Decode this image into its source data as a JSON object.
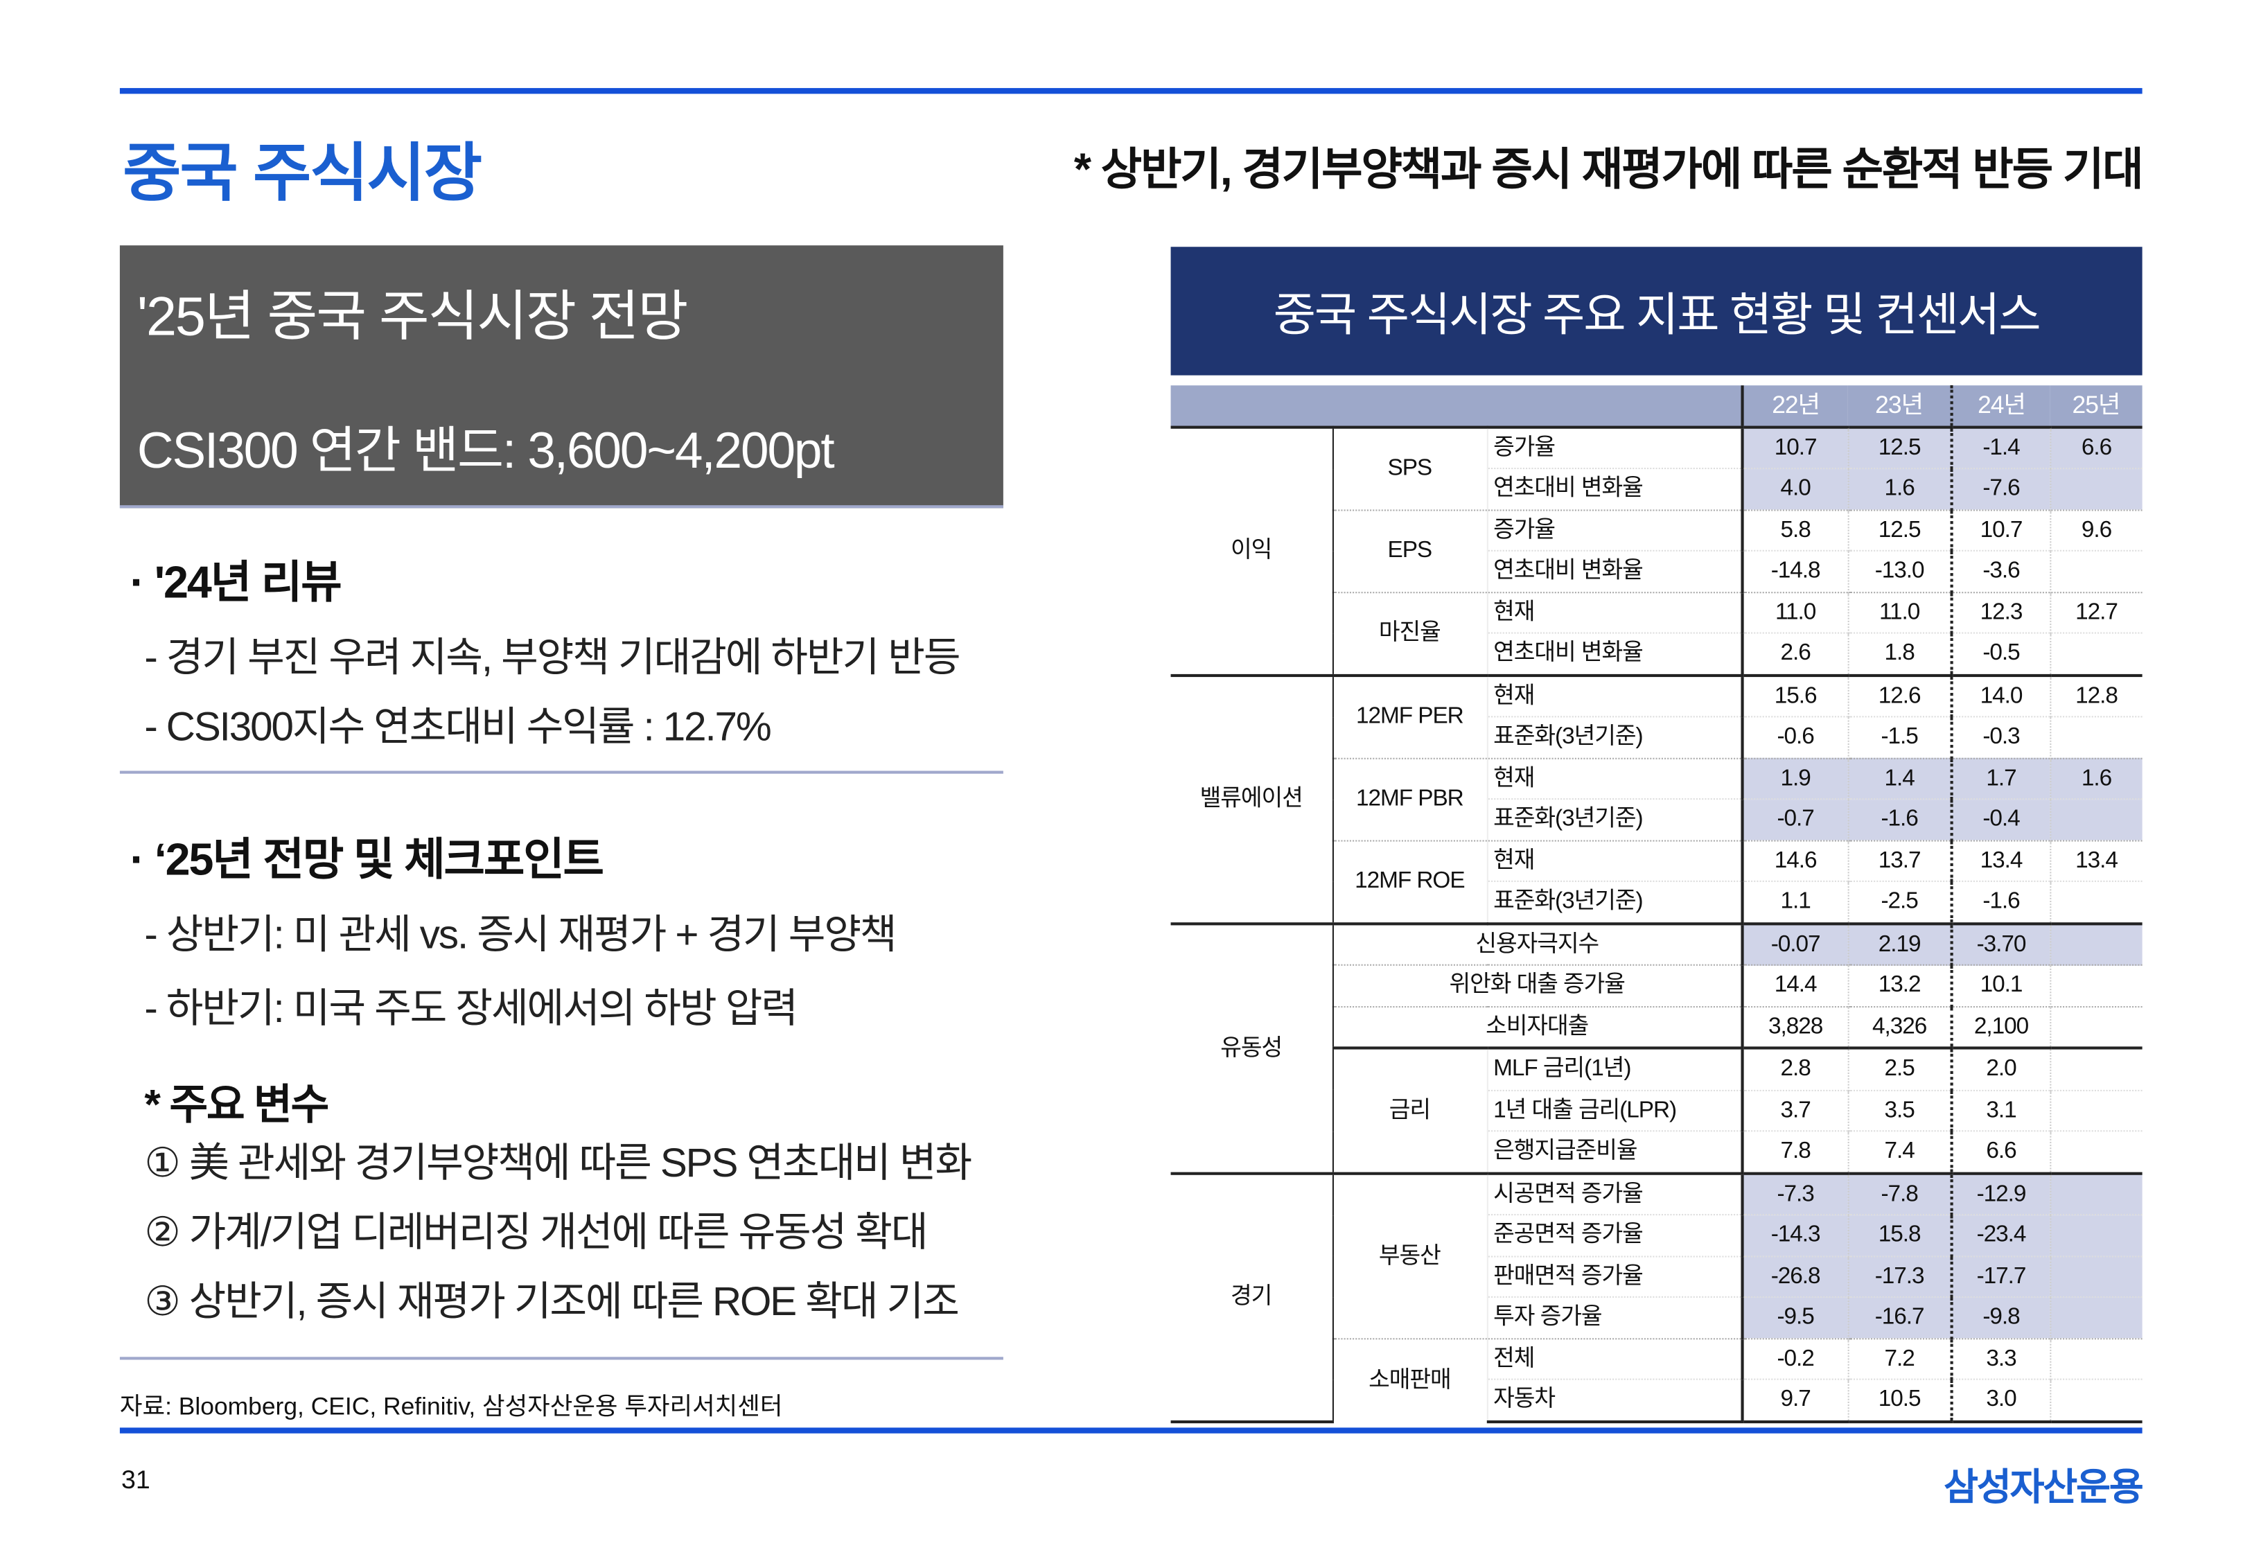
{
  "header": {
    "title": "중국 주식시장",
    "subtitle": "* 상반기, 경기부양책과 증시 재평가에 따른 순환적 반등 기대"
  },
  "outlook_box": {
    "title": "'25년 중국 주식시장 전망",
    "band": "CSI300 연간 밴드: 3,600~4,200pt"
  },
  "review": {
    "heading": "· '24년 리뷰",
    "bullets": [
      "- 경기 부진 우려 지속, 부양책 기대감에 하반기 반등",
      "- CSI300지수 연초대비 수익률 : 12.7%"
    ]
  },
  "outlook": {
    "heading": "· ‘25년 전망 및 체크포인트",
    "bullets": [
      "- 상반기: 미 관세 vs. 증시 재평가 + 경기 부양책",
      "- 하반기: 미국 주도 장세에서의 하방 압력"
    ]
  },
  "variables": {
    "heading": "* 주요 변수",
    "items": [
      "① 美 관세와 경기부양책에 따른 SPS 연초대비 변화",
      "② 가계/기업 디레버리징 개선에 따른 유동성 확대",
      "③ 상반기, 증시 재평가 기조에 따른 ROE 확대 기조"
    ]
  },
  "source": "자료: Bloomberg, CEIC, Refinitiv, 삼성자산운용 투자리서치센터",
  "footer": {
    "page": "31",
    "logo": "삼성자산운용"
  },
  "table": {
    "title": "중국 주식시장 주요 지표 현황 및 컨센서스",
    "columns": [
      "22년",
      "23년",
      "24년",
      "25년"
    ],
    "groups": [
      {
        "name": "이익",
        "subs": [
          {
            "name": "SPS",
            "hl": true,
            "rows": [
              {
                "item": "증가율",
                "values": [
                  "10.7",
                  "12.5",
                  "-1.4",
                  "6.6"
                ]
              },
              {
                "item": "연초대비 변화율",
                "values": [
                  "4.0",
                  "1.6",
                  "-7.6",
                  ""
                ]
              }
            ]
          },
          {
            "name": "EPS",
            "hl": false,
            "rows": [
              {
                "item": "증가율",
                "values": [
                  "5.8",
                  "12.5",
                  "10.7",
                  "9.6"
                ]
              },
              {
                "item": "연초대비 변화율",
                "values": [
                  "-14.8",
                  "-13.0",
                  "-3.6",
                  ""
                ]
              }
            ]
          },
          {
            "name": "마진율",
            "hl": false,
            "rows": [
              {
                "item": "현재",
                "values": [
                  "11.0",
                  "11.0",
                  "12.3",
                  "12.7"
                ]
              },
              {
                "item": "연초대비 변화율",
                "values": [
                  "2.6",
                  "1.8",
                  "-0.5",
                  ""
                ]
              }
            ]
          }
        ]
      },
      {
        "name": "밸류에이션",
        "subs": [
          {
            "name": "12MF PER",
            "hl": false,
            "rows": [
              {
                "item": "현재",
                "values": [
                  "15.6",
                  "12.6",
                  "14.0",
                  "12.8"
                ]
              },
              {
                "item": "표준화(3년기준)",
                "values": [
                  "-0.6",
                  "-1.5",
                  "-0.3",
                  ""
                ]
              }
            ]
          },
          {
            "name": "12MF PBR",
            "hl": true,
            "rows": [
              {
                "item": "현재",
                "values": [
                  "1.9",
                  "1.4",
                  "1.7",
                  "1.6"
                ]
              },
              {
                "item": "표준화(3년기준)",
                "values": [
                  "-0.7",
                  "-1.6",
                  "-0.4",
                  ""
                ]
              }
            ]
          },
          {
            "name": "12MF ROE",
            "hl": false,
            "rows": [
              {
                "item": "현재",
                "values": [
                  "14.6",
                  "13.7",
                  "13.4",
                  "13.4"
                ]
              },
              {
                "item": "표준화(3년기준)",
                "values": [
                  "1.1",
                  "-2.5",
                  "-1.6",
                  ""
                ]
              }
            ]
          }
        ]
      },
      {
        "name": "유동성",
        "subs": [
          {
            "name": null,
            "hl": true,
            "rows": [
              {
                "item": "신용자극지수",
                "values": [
                  "-0.07",
                  "2.19",
                  "-3.70",
                  ""
                ]
              }
            ]
          },
          {
            "name": null,
            "hl": false,
            "rows": [
              {
                "item": "위안화 대출 증가율",
                "values": [
                  "14.4",
                  "13.2",
                  "10.1",
                  ""
                ]
              }
            ]
          },
          {
            "name": null,
            "hl": false,
            "rows": [
              {
                "item": "소비자대출",
                "values": [
                  "3,828",
                  "4,326",
                  "2,100",
                  ""
                ]
              }
            ]
          },
          {
            "name": "금리",
            "hl": false,
            "thick": true,
            "rows": [
              {
                "item": "MLF 금리(1년)",
                "values": [
                  "2.8",
                  "2.5",
                  "2.0",
                  ""
                ]
              },
              {
                "item": "1년 대출 금리(LPR)",
                "values": [
                  "3.7",
                  "3.5",
                  "3.1",
                  ""
                ]
              },
              {
                "item": "은행지급준비율",
                "values": [
                  "7.8",
                  "7.4",
                  "6.6",
                  ""
                ]
              }
            ]
          }
        ]
      },
      {
        "name": "경기",
        "subs": [
          {
            "name": "부동산",
            "hl": true,
            "rows": [
              {
                "item": "시공면적 증가율",
                "values": [
                  "-7.3",
                  "-7.8",
                  "-12.9",
                  ""
                ]
              },
              {
                "item": "준공면적 증가율",
                "values": [
                  "-14.3",
                  "15.8",
                  "-23.4",
                  ""
                ]
              },
              {
                "item": "판매면적 증가율",
                "values": [
                  "-26.8",
                  "-17.3",
                  "-17.7",
                  ""
                ]
              },
              {
                "item": "투자 증가율",
                "values": [
                  "-9.5",
                  "-16.7",
                  "-9.8",
                  ""
                ]
              }
            ]
          },
          {
            "name": "소매판매",
            "hl": false,
            "rows": [
              {
                "item": "전체",
                "values": [
                  "-0.2",
                  "7.2",
                  "3.3",
                  ""
                ]
              },
              {
                "item": "자동차",
                "values": [
                  "9.7",
                  "10.5",
                  "3.0",
                  ""
                ]
              }
            ]
          }
        ]
      }
    ]
  }
}
